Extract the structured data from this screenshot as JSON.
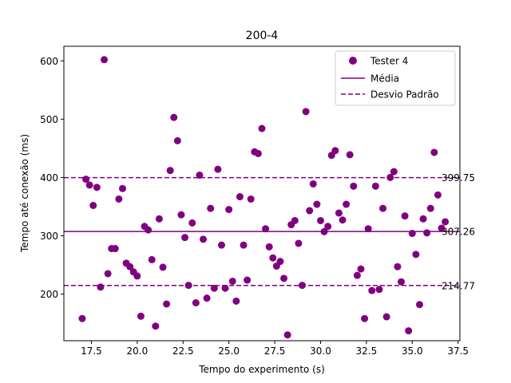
{
  "chart_data": {
    "type": "scatter",
    "title": "200-4",
    "xlabel": "Tempo do experimento (s)",
    "ylabel": "Tempo até conexão (ms)",
    "xlim": [
      16.0,
      37.6
    ],
    "ylim": [
      120,
      625
    ],
    "grid": false,
    "legend_position": "top-right",
    "x_ticks": [
      "17.5",
      "20.0",
      "22.5",
      "25.0",
      "27.5",
      "30.0",
      "32.5",
      "35.0",
      "37.5"
    ],
    "y_ticks": [
      "200",
      "300",
      "400",
      "500",
      "600"
    ],
    "series": [
      {
        "name": "Tester 4",
        "color": "#800080",
        "points": [
          [
            17.0,
            158
          ],
          [
            17.2,
            397
          ],
          [
            17.4,
            387
          ],
          [
            17.6,
            352
          ],
          [
            17.8,
            383
          ],
          [
            18.0,
            212
          ],
          [
            18.2,
            602
          ],
          [
            18.4,
            235
          ],
          [
            18.6,
            278
          ],
          [
            18.8,
            278
          ],
          [
            19.0,
            363
          ],
          [
            19.2,
            381
          ],
          [
            19.4,
            253
          ],
          [
            19.6,
            247
          ],
          [
            19.8,
            238
          ],
          [
            20.0,
            231
          ],
          [
            20.2,
            162
          ],
          [
            20.4,
            316
          ],
          [
            20.6,
            310
          ],
          [
            20.8,
            259
          ],
          [
            21.0,
            145
          ],
          [
            21.2,
            329
          ],
          [
            21.4,
            246
          ],
          [
            21.6,
            183
          ],
          [
            21.8,
            412
          ],
          [
            22.0,
            503
          ],
          [
            22.2,
            463
          ],
          [
            22.4,
            336
          ],
          [
            22.6,
            297
          ],
          [
            22.8,
            215
          ],
          [
            23.0,
            322
          ],
          [
            23.2,
            185
          ],
          [
            23.4,
            404
          ],
          [
            23.6,
            294
          ],
          [
            23.8,
            193
          ],
          [
            24.0,
            347
          ],
          [
            24.2,
            210
          ],
          [
            24.4,
            414
          ],
          [
            24.6,
            284
          ],
          [
            24.8,
            210
          ],
          [
            25.0,
            345
          ],
          [
            25.2,
            222
          ],
          [
            25.4,
            188
          ],
          [
            25.6,
            367
          ],
          [
            25.8,
            284
          ],
          [
            26.0,
            224
          ],
          [
            26.2,
            363
          ],
          [
            26.4,
            444
          ],
          [
            26.6,
            441
          ],
          [
            26.8,
            484
          ],
          [
            27.0,
            312
          ],
          [
            27.2,
            281
          ],
          [
            27.4,
            262
          ],
          [
            27.6,
            248
          ],
          [
            27.8,
            256
          ],
          [
            28.0,
            227
          ],
          [
            28.2,
            130
          ],
          [
            28.4,
            319
          ],
          [
            28.6,
            326
          ],
          [
            28.8,
            287
          ],
          [
            29.0,
            215
          ],
          [
            29.2,
            513
          ],
          [
            29.4,
            343
          ],
          [
            29.6,
            389
          ],
          [
            29.8,
            354
          ],
          [
            30.0,
            326
          ],
          [
            30.2,
            307
          ],
          [
            30.4,
            316
          ],
          [
            30.6,
            438
          ],
          [
            30.8,
            446
          ],
          [
            31.0,
            339
          ],
          [
            31.2,
            327
          ],
          [
            31.4,
            354
          ],
          [
            31.6,
            439
          ],
          [
            31.8,
            385
          ],
          [
            32.0,
            232
          ],
          [
            32.2,
            243
          ],
          [
            32.4,
            158
          ],
          [
            32.6,
            312
          ],
          [
            32.8,
            206
          ],
          [
            33.0,
            385
          ],
          [
            33.2,
            208
          ],
          [
            33.4,
            347
          ],
          [
            33.6,
            161
          ],
          [
            33.8,
            400
          ],
          [
            34.0,
            410
          ],
          [
            34.2,
            247
          ],
          [
            34.4,
            221
          ],
          [
            34.6,
            334
          ],
          [
            34.8,
            137
          ],
          [
            35.0,
            304
          ],
          [
            35.2,
            268
          ],
          [
            35.4,
            182
          ],
          [
            35.6,
            329
          ],
          [
            35.8,
            305
          ],
          [
            36.0,
            347
          ],
          [
            36.2,
            443
          ],
          [
            36.4,
            370
          ],
          [
            36.6,
            313
          ],
          [
            36.8,
            324
          ]
        ]
      }
    ],
    "reference_lines": [
      {
        "name": "Média",
        "value": 307.26,
        "label": "307.26",
        "style": "solid",
        "color": "#800080"
      },
      {
        "name": "Desvio Padrão",
        "value": 399.75,
        "label": "399.75",
        "style": "dashed",
        "color": "#800080"
      },
      {
        "name": "Desvio Padrão",
        "value": 214.77,
        "label": "214.77",
        "style": "dashed",
        "color": "#800080"
      }
    ],
    "legend": [
      {
        "label": "Tester 4",
        "kind": "marker"
      },
      {
        "label": "Média",
        "kind": "solid-line"
      },
      {
        "label": "Desvio Padrão",
        "kind": "dashed-line"
      }
    ]
  }
}
